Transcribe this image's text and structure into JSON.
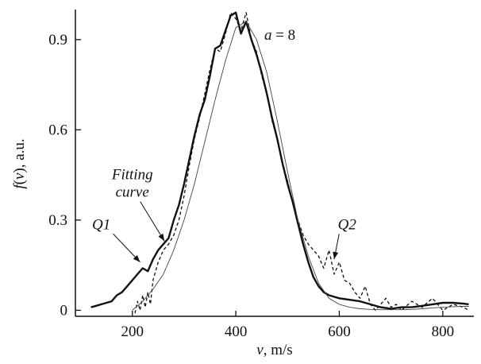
{
  "chart_data": {
    "type": "line",
    "title": "",
    "xlabel": {
      "var": "v",
      "rest": ", m/s"
    },
    "ylabel": {
      "var": "f",
      "paren_open": "(",
      "arg": "v",
      "paren_close": ")",
      "rest": ", a.u."
    },
    "xlim": [
      90,
      860
    ],
    "ylim": [
      -0.02,
      1.0
    ],
    "xticks": [
      200,
      400,
      600,
      800
    ],
    "xtick_labels": [
      "200",
      "400",
      "600",
      "800"
    ],
    "yticks": [
      0,
      0.3,
      0.6,
      0.9
    ],
    "ytick_labels": [
      "0",
      "0.3",
      "0.6",
      "0.9"
    ],
    "grid": false,
    "legend": "none",
    "series": [
      {
        "name": "Q1",
        "style": "thick-solid",
        "x": [
          120,
          130,
          140,
          150,
          160,
          170,
          180,
          190,
          200,
          210,
          220,
          230,
          240,
          250,
          260,
          270,
          280,
          290,
          300,
          310,
          320,
          330,
          340,
          350,
          360,
          370,
          380,
          390,
          400,
          410,
          420,
          430,
          440,
          450,
          460,
          470,
          480,
          490,
          500,
          510,
          520,
          530,
          540,
          550,
          560,
          570,
          580,
          600,
          620,
          640,
          660,
          680,
          700,
          720,
          740,
          760,
          780,
          800,
          820,
          840,
          850
        ],
        "y": [
          0.01,
          0.015,
          0.02,
          0.025,
          0.03,
          0.05,
          0.06,
          0.08,
          0.1,
          0.12,
          0.14,
          0.13,
          0.17,
          0.2,
          0.22,
          0.24,
          0.3,
          0.35,
          0.42,
          0.5,
          0.58,
          0.65,
          0.7,
          0.78,
          0.87,
          0.88,
          0.93,
          0.98,
          0.99,
          0.92,
          0.96,
          0.9,
          0.85,
          0.79,
          0.72,
          0.64,
          0.57,
          0.49,
          0.42,
          0.36,
          0.29,
          0.22,
          0.16,
          0.11,
          0.08,
          0.06,
          0.05,
          0.04,
          0.035,
          0.03,
          0.02,
          0.01,
          0.005,
          0.01,
          0.01,
          0.015,
          0.02,
          0.025,
          0.025,
          0.022,
          0.02
        ]
      },
      {
        "name": "Q2",
        "style": "dashed",
        "x": [
          205,
          210,
          215,
          220,
          225,
          230,
          235,
          240,
          250,
          260,
          270,
          280,
          290,
          300,
          310,
          320,
          330,
          340,
          350,
          360,
          370,
          380,
          390,
          400,
          410,
          420,
          430,
          440,
          450,
          460,
          470,
          480,
          490,
          500,
          510,
          520,
          530,
          540,
          550,
          560,
          570,
          580,
          590,
          600,
          610,
          620,
          630,
          640,
          650,
          660,
          670,
          680,
          690,
          700,
          710,
          720,
          740,
          760,
          780,
          800,
          820,
          840,
          850
        ],
        "y": [
          -0.01,
          0.03,
          0.0,
          0.05,
          0.01,
          0.06,
          0.02,
          0.1,
          0.16,
          0.2,
          0.22,
          0.25,
          0.3,
          0.38,
          0.48,
          0.57,
          0.64,
          0.72,
          0.8,
          0.87,
          0.86,
          0.92,
          0.99,
          0.97,
          0.93,
          0.99,
          0.9,
          0.86,
          0.78,
          0.72,
          0.63,
          0.57,
          0.49,
          0.43,
          0.36,
          0.3,
          0.25,
          0.22,
          0.2,
          0.18,
          0.14,
          0.2,
          0.12,
          0.16,
          0.1,
          0.09,
          0.06,
          0.04,
          0.08,
          0.02,
          0.0,
          0.02,
          0.04,
          0.01,
          0.02,
          0.0,
          0.03,
          0.01,
          0.04,
          0.0,
          0.02,
          0.01,
          0.0
        ]
      },
      {
        "name": "Fitting curve",
        "style": "thin-solid",
        "x": [
          200,
          220,
          240,
          260,
          280,
          300,
          320,
          340,
          360,
          380,
          400,
          420,
          440,
          460,
          480,
          500,
          520,
          540,
          560,
          580,
          600,
          620,
          640,
          660,
          680,
          700,
          720,
          740,
          760,
          780,
          800,
          820,
          840,
          850
        ],
        "y": [
          0.0,
          0.03,
          0.07,
          0.12,
          0.2,
          0.3,
          0.42,
          0.56,
          0.7,
          0.83,
          0.94,
          0.96,
          0.9,
          0.79,
          0.63,
          0.46,
          0.3,
          0.18,
          0.09,
          0.04,
          0.02,
          0.01,
          0.005,
          0.003,
          0.002,
          0.002,
          0.002,
          0.003,
          0.005,
          0.008,
          0.01,
          0.012,
          0.013,
          0.013
        ]
      }
    ],
    "annotations": [
      {
        "id": "a-param",
        "prefix": "a",
        "rest": " = 8",
        "at": [
          455,
          0.9
        ]
      },
      {
        "id": "q1",
        "text": "Q1",
        "at": [
          140,
          0.27
        ],
        "arrow_to": [
          215,
          0.16
        ]
      },
      {
        "id": "fitting",
        "line1": "Fitting",
        "line2": "curve",
        "at": [
          200,
          0.43
        ],
        "arrow_to": [
          262,
          0.23
        ]
      },
      {
        "id": "q2",
        "text": "Q2",
        "at": [
          615,
          0.27
        ],
        "arrow_to": [
          590,
          0.17
        ]
      }
    ]
  }
}
